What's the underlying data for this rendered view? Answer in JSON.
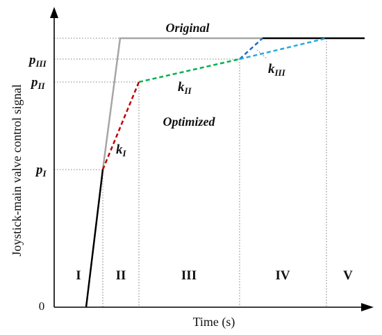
{
  "axes": {
    "y_label": "Joystick-main valve control signal",
    "x_label": "Time (s)",
    "origin_label": "0"
  },
  "levels": {
    "p_I": {
      "base": "p",
      "sub": "I"
    },
    "p_II": {
      "base": "p",
      "sub": "II"
    },
    "p_III": {
      "base": "p",
      "sub": "III"
    }
  },
  "slopes": {
    "k_I": {
      "base": "k",
      "sub": "I"
    },
    "k_II": {
      "base": "k",
      "sub": "II"
    },
    "k_III": {
      "base": "k",
      "sub": "III"
    }
  },
  "curves": {
    "original": {
      "label": "Original",
      "color": "#a6a6a6"
    },
    "optimized": {
      "label": "Optimized"
    },
    "common_color": "#000000",
    "segment_colors": {
      "k_I": "#c00000",
      "k_II": "#00b050",
      "k_III_dark": "#1f6fbf",
      "k_III_light": "#29a8e0"
    }
  },
  "phases": [
    "I",
    "II",
    "III",
    "IV",
    "V"
  ]
}
